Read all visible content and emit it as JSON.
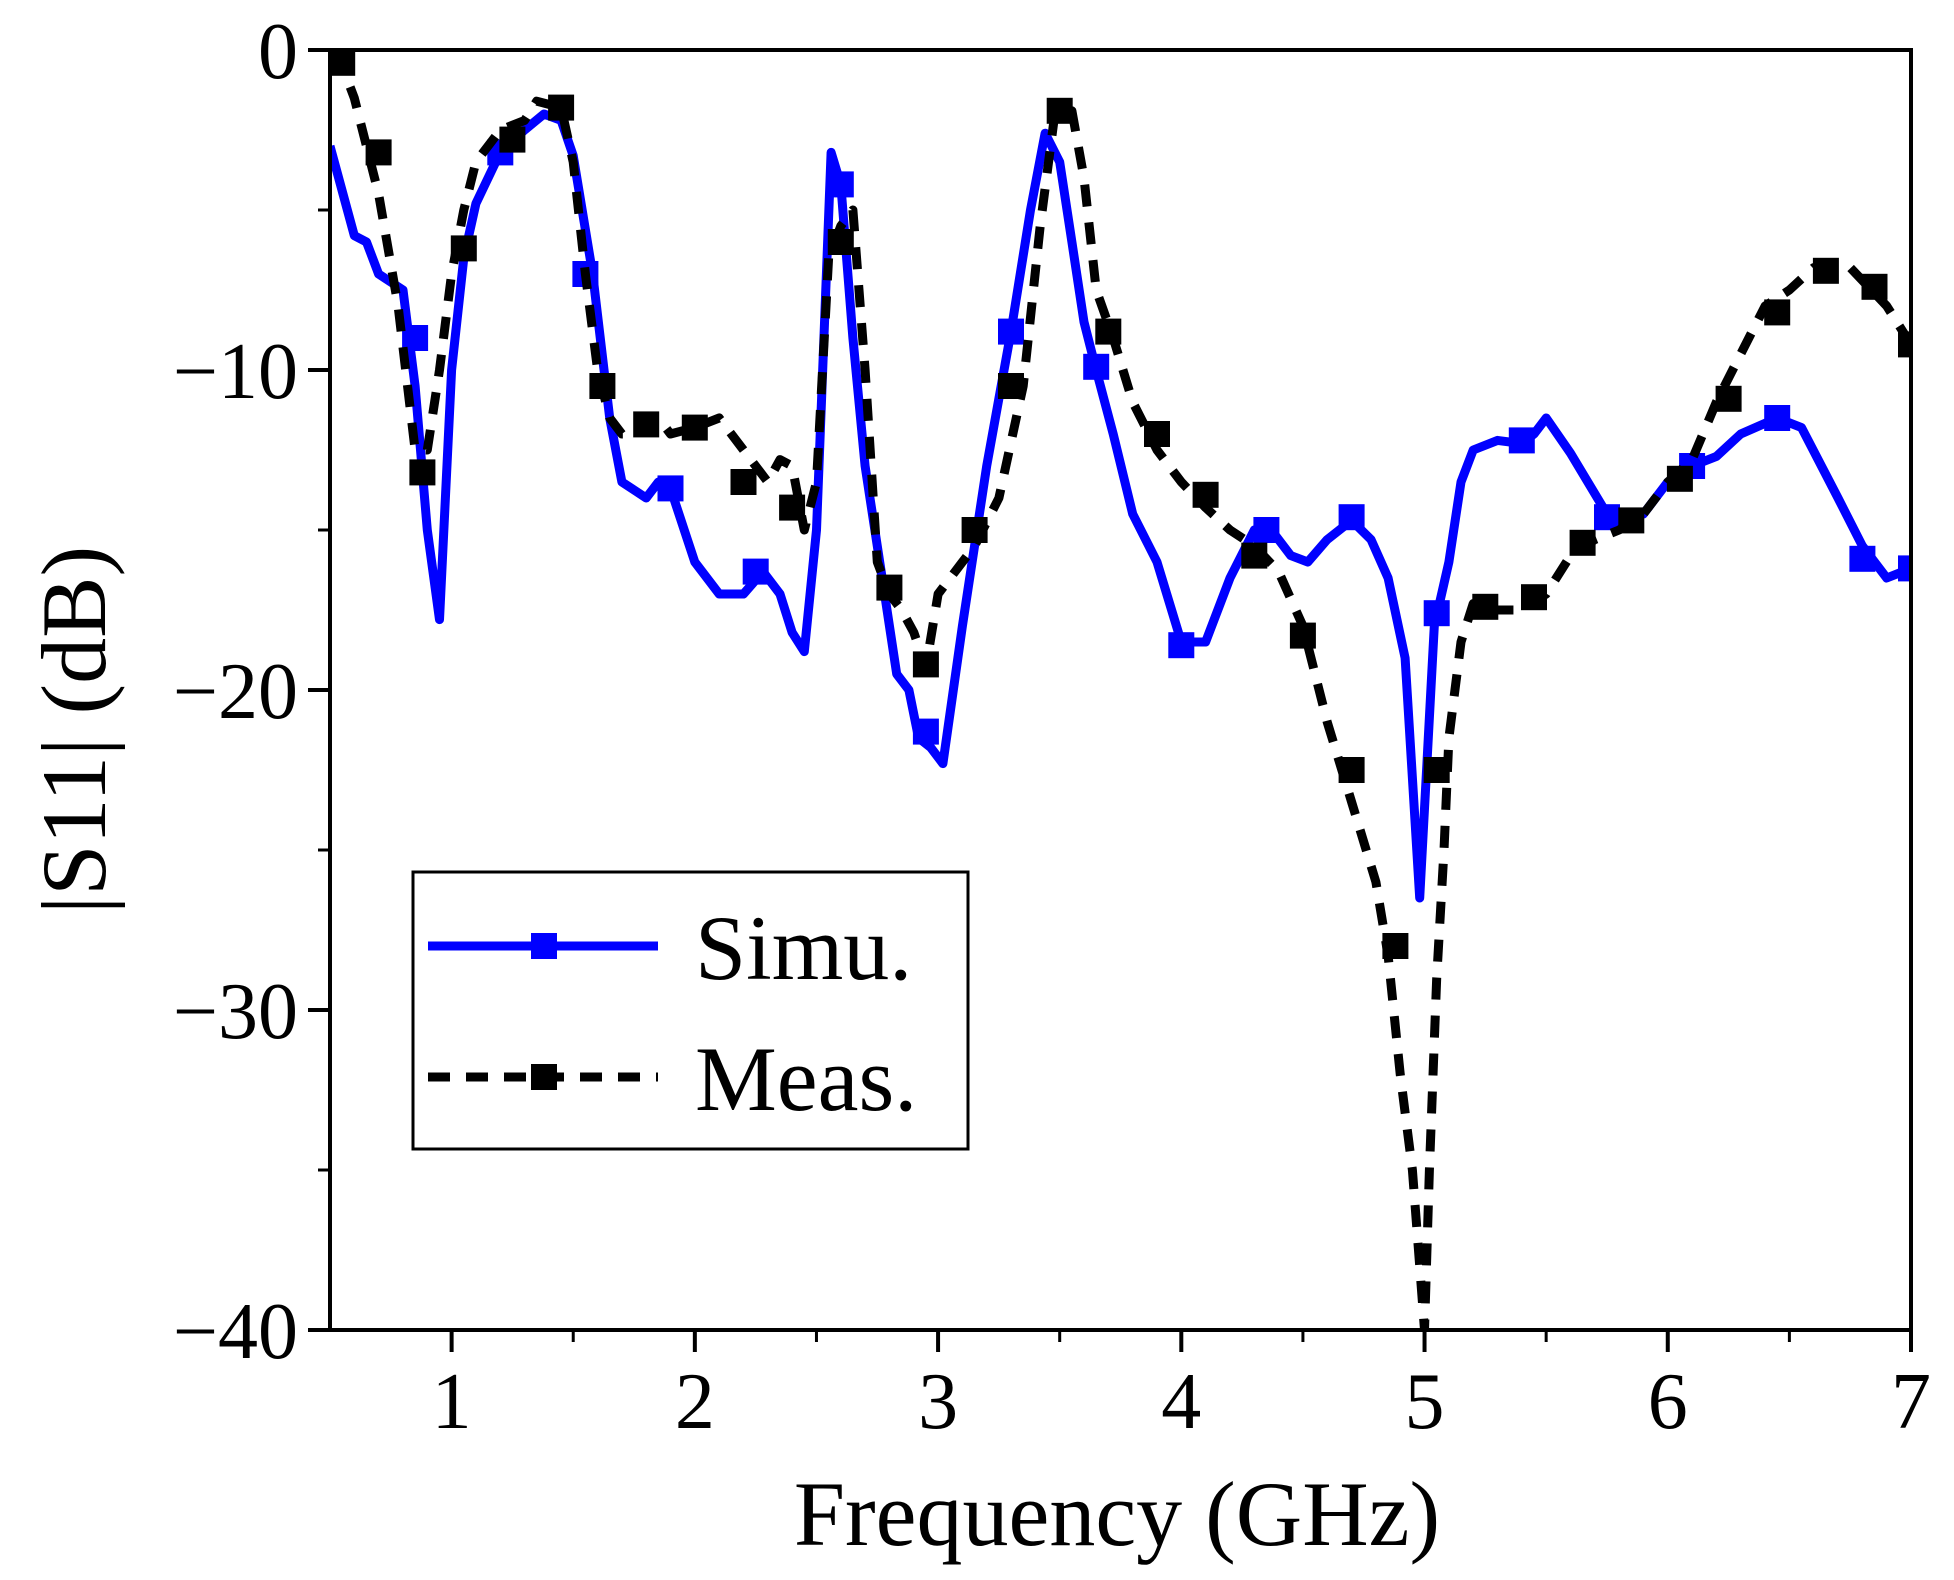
{
  "chart_data": {
    "type": "line",
    "title": "",
    "xlabel": "Frequency (GHz)",
    "ylabel": "|S11| (dB)",
    "xlim": [
      0.5,
      7
    ],
    "ylim": [
      -40,
      0
    ],
    "xticks": [
      1,
      2,
      3,
      4,
      5,
      6,
      7
    ],
    "xtick_labels": [
      "1",
      "2",
      "3",
      "4",
      "5",
      "6",
      "7"
    ],
    "yticks": [
      0,
      -10,
      -20,
      -30,
      -40
    ],
    "ytick_labels": [
      "0",
      "−10",
      "−20",
      "−30",
      "−40"
    ],
    "grid": false,
    "legend": {
      "position": "bottom-left",
      "entries": [
        "Simu.",
        "Meas."
      ]
    },
    "series": [
      {
        "name": "Simu.",
        "color": "#0000ff",
        "line_style": "solid",
        "marker": "square",
        "x": [
          0.5,
          0.6,
          0.65,
          0.7,
          0.8,
          0.85,
          0.9,
          0.95,
          1.0,
          1.05,
          1.1,
          1.2,
          1.3,
          1.38,
          1.45,
          1.5,
          1.58,
          1.65,
          1.7,
          1.8,
          1.85,
          1.9,
          2.0,
          2.1,
          2.2,
          2.28,
          2.35,
          2.4,
          2.45,
          2.5,
          2.56,
          2.6,
          2.65,
          2.7,
          2.78,
          2.83,
          2.88,
          2.92,
          2.97,
          3.02,
          3.1,
          3.2,
          3.3,
          3.38,
          3.44,
          3.5,
          3.55,
          3.6,
          3.65,
          3.72,
          3.8,
          3.9,
          4.0,
          4.1,
          4.2,
          4.3,
          4.37,
          4.45,
          4.52,
          4.6,
          4.7,
          4.78,
          4.85,
          4.92,
          4.98,
          5.04,
          5.1,
          5.15,
          5.2,
          5.3,
          5.4,
          5.45,
          5.5,
          5.6,
          5.75,
          5.9,
          6.0,
          6.1,
          6.2,
          6.3,
          6.45,
          6.55,
          6.7,
          6.8,
          6.9,
          7.0
        ],
        "y": [
          -3.0,
          -5.8,
          -6.0,
          -7.0,
          -7.5,
          -10.5,
          -15.0,
          -17.8,
          -10.0,
          -6.5,
          -4.8,
          -3.2,
          -2.5,
          -2.0,
          -2.2,
          -3.3,
          -7.0,
          -11.5,
          -13.5,
          -14.0,
          -13.5,
          -13.7,
          -16.0,
          -17.0,
          -17.0,
          -16.3,
          -17.0,
          -18.2,
          -18.8,
          -15.0,
          -3.2,
          -4.2,
          -9.0,
          -13.0,
          -17.0,
          -19.5,
          -20.0,
          -21.5,
          -21.8,
          -22.3,
          -18.0,
          -13.0,
          -8.8,
          -5.0,
          -2.6,
          -3.5,
          -6.0,
          -8.5,
          -10.0,
          -12.0,
          -14.5,
          -16.0,
          -18.5,
          -18.5,
          -16.5,
          -15.0,
          -15.0,
          -15.8,
          -16.0,
          -15.3,
          -14.7,
          -15.3,
          -16.5,
          -19.0,
          -26.5,
          -18.0,
          -16.0,
          -13.5,
          -12.5,
          -12.2,
          -12.3,
          -12.0,
          -11.5,
          -12.6,
          -14.5,
          -14.5,
          -13.5,
          -13.0,
          -12.7,
          -12.0,
          -11.5,
          -11.8,
          -14.0,
          -15.5,
          -16.5,
          -16.2
        ],
        "marker_x": [
          0.85,
          1.2,
          1.55,
          1.9,
          2.25,
          2.6,
          2.95,
          3.3,
          3.65,
          4.0,
          4.35,
          4.7,
          5.05,
          5.4,
          5.75,
          6.1,
          6.45,
          6.8,
          7.0
        ],
        "marker_y": [
          -9.0,
          -3.2,
          -7.0,
          -13.7,
          -16.3,
          -4.2,
          -21.3,
          -8.8,
          -9.9,
          -18.6,
          -15.0,
          -14.6,
          -17.6,
          -12.2,
          -14.6,
          -13.0,
          -11.5,
          -15.9,
          -16.2
        ]
      },
      {
        "name": "Meas.",
        "color": "#000000",
        "line_style": "dashed",
        "marker": "square",
        "x": [
          0.5,
          0.55,
          0.6,
          0.7,
          0.78,
          0.85,
          0.9,
          0.95,
          1.0,
          1.05,
          1.1,
          1.2,
          1.3,
          1.35,
          1.45,
          1.5,
          1.55,
          1.6,
          1.65,
          1.7,
          1.75,
          1.85,
          1.9,
          2.0,
          2.1,
          2.2,
          2.3,
          2.35,
          2.4,
          2.45,
          2.5,
          2.55,
          2.6,
          2.65,
          2.7,
          2.75,
          2.8,
          2.85,
          2.9,
          2.95,
          3.0,
          3.05,
          3.1,
          3.15,
          3.25,
          3.35,
          3.42,
          3.48,
          3.55,
          3.6,
          3.65,
          3.72,
          3.8,
          3.9,
          4.0,
          4.1,
          4.2,
          4.3,
          4.4,
          4.5,
          4.6,
          4.7,
          4.8,
          4.85,
          4.9,
          4.95,
          4.98,
          5.0,
          5.02,
          5.05,
          5.08,
          5.1,
          5.15,
          5.2,
          5.3,
          5.4,
          5.5,
          5.6,
          5.7,
          5.8,
          5.9,
          6.0,
          6.1,
          6.2,
          6.3,
          6.4,
          6.5,
          6.6,
          6.75,
          6.9,
          7.0
        ],
        "y": [
          -0.2,
          -0.5,
          -1.5,
          -4.5,
          -8.0,
          -12.5,
          -12.5,
          -10.0,
          -7.0,
          -5.0,
          -3.5,
          -2.5,
          -2.2,
          -1.6,
          -1.8,
          -3.5,
          -7.0,
          -10.0,
          -11.5,
          -12.0,
          -12.0,
          -11.5,
          -12.0,
          -11.8,
          -11.5,
          -12.5,
          -13.5,
          -12.8,
          -13.0,
          -15.0,
          -13.5,
          -6.5,
          -5.5,
          -5.0,
          -10.0,
          -16.0,
          -17.0,
          -17.5,
          -18.2,
          -19.3,
          -17.0,
          -16.5,
          -16.0,
          -15.5,
          -14.0,
          -10.5,
          -5.5,
          -2.0,
          -1.9,
          -4.0,
          -7.5,
          -9.0,
          -11.0,
          -12.5,
          -13.5,
          -14.3,
          -15.0,
          -15.5,
          -16.3,
          -18.0,
          -21.0,
          -23.5,
          -26.0,
          -28.3,
          -32.0,
          -35.0,
          -38.0,
          -40.0,
          -35.0,
          -29.0,
          -25.0,
          -21.5,
          -18.5,
          -17.3,
          -17.5,
          -17.5,
          -17.0,
          -15.8,
          -15.3,
          -15.0,
          -14.5,
          -13.5,
          -12.8,
          -11.0,
          -9.5,
          -8.0,
          -7.5,
          -6.8,
          -6.8,
          -8.0,
          -9.2
        ],
        "marker_x": [
          0.55,
          0.7,
          0.88,
          1.05,
          1.25,
          1.45,
          1.62,
          1.8,
          2.0,
          2.2,
          2.4,
          2.6,
          2.8,
          2.95,
          3.15,
          3.3,
          3.5,
          3.7,
          3.9,
          4.1,
          4.3,
          4.5,
          4.7,
          4.88,
          5.05,
          5.25,
          5.45,
          5.65,
          5.85,
          6.05,
          6.25,
          6.45,
          6.65,
          6.85,
          7.0
        ],
        "marker_y": [
          -0.4,
          -3.2,
          -13.2,
          -6.2,
          -2.8,
          -1.8,
          -10.5,
          -11.7,
          -11.8,
          -13.5,
          -14.3,
          -6.0,
          -16.8,
          -19.2,
          -15.0,
          -10.5,
          -1.9,
          -8.8,
          -12.0,
          -13.9,
          -15.8,
          -18.3,
          -22.5,
          -28.0,
          -22.5,
          -17.4,
          -17.1,
          -15.4,
          -14.7,
          -13.4,
          -10.9,
          -8.2,
          -6.9,
          -7.4,
          -9.2
        ]
      }
    ]
  }
}
